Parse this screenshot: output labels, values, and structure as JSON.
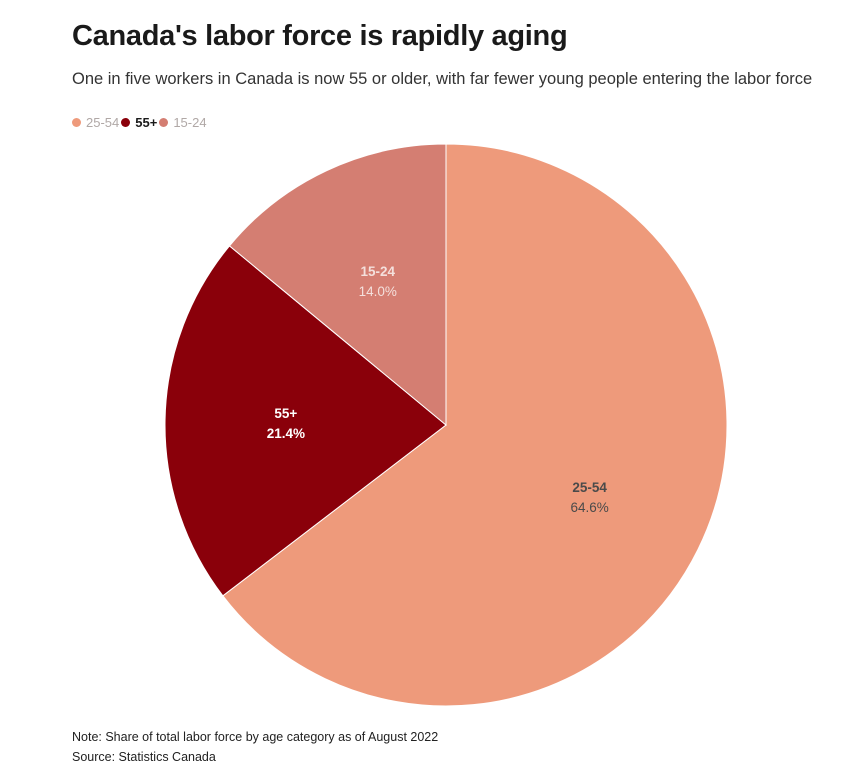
{
  "title": "Canada's labor force is rapidly aging",
  "subtitle": "One in five workers in Canada is now 55 or older, with far fewer young people entering the labor force",
  "legend": [
    {
      "label": "25-54",
      "color": "#ee9a7b",
      "active": false
    },
    {
      "label": "55+",
      "color": "#8a000a",
      "active": true
    },
    {
      "label": "15-24",
      "color": "#d47e72",
      "active": false
    }
  ],
  "chart_data": {
    "type": "pie",
    "slices": [
      {
        "label": "25-54",
        "value": 64.6,
        "display": "64.6%",
        "color": "#ee9a7b",
        "label_color": "#4a4a4a"
      },
      {
        "label": "55+",
        "value": 21.4,
        "display": "21.4%",
        "color": "#8a000a",
        "label_color": "#ffffff"
      },
      {
        "label": "15-24",
        "value": 14.0,
        "display": "14.0%",
        "color": "#d47e72",
        "label_color": "#f4e0dc"
      }
    ]
  },
  "note": "Note: Share of total labor force by age category as of August 2022",
  "source": "Source: Statistics Canada"
}
